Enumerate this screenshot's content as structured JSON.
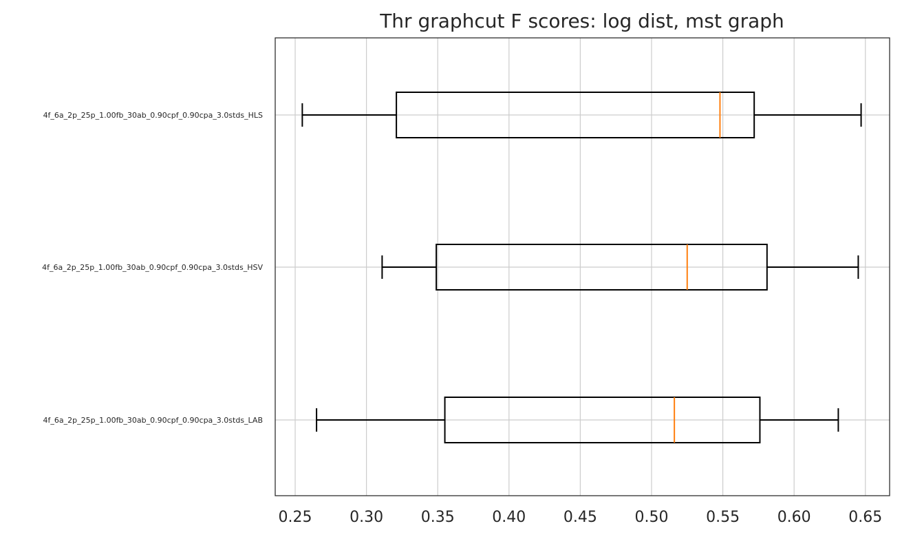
{
  "chart_data": {
    "type": "boxplot",
    "orientation": "horizontal",
    "title": "Thr graphcut F scores: log dist, mst graph",
    "xlabel": "",
    "ylabel": "",
    "xlim": [
      0.236,
      0.667
    ],
    "xticks": [
      0.25,
      0.3,
      0.35,
      0.4,
      0.45,
      0.5,
      0.55,
      0.6,
      0.65
    ],
    "xtick_labels": [
      "0.25",
      "0.30",
      "0.35",
      "0.40",
      "0.45",
      "0.50",
      "0.55",
      "0.60",
      "0.65"
    ],
    "grid": true,
    "categories": [
      "4f_6a_2p_25p_1.00fb_30ab_0.90cpf_0.90cpa_3.0stds_HLS",
      "4f_6a_2p_25p_1.00fb_30ab_0.90cpf_0.90cpa_3.0stds_HSV",
      "4f_6a_2p_25p_1.00fb_30ab_0.90cpf_0.90cpa_3.0stds_LAB"
    ],
    "boxes": [
      {
        "whisker_low": 0.255,
        "q1": 0.321,
        "median": 0.548,
        "q3": 0.572,
        "whisker_high": 0.647
      },
      {
        "whisker_low": 0.311,
        "q1": 0.349,
        "median": 0.525,
        "q3": 0.581,
        "whisker_high": 0.645
      },
      {
        "whisker_low": 0.265,
        "q1": 0.355,
        "median": 0.516,
        "q3": 0.576,
        "whisker_high": 0.631
      }
    ],
    "colors": {
      "box": "#000000",
      "median": "#ff7f0e",
      "grid": "#cccccc",
      "axes": "#262626"
    }
  }
}
